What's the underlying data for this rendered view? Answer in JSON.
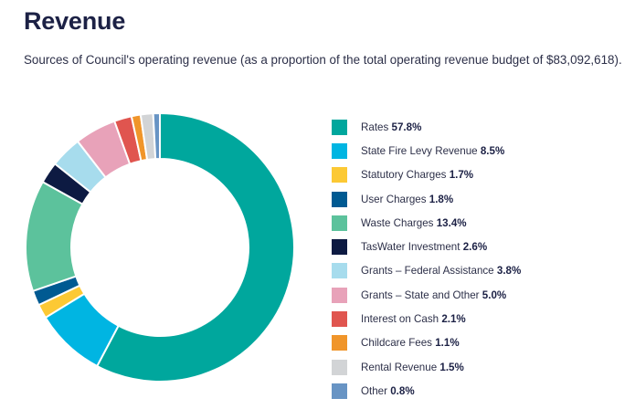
{
  "title": "Revenue",
  "subtitle": "Sources of Council's operating revenue (as a proportion of the total operating revenue budget of $83,092,618).",
  "chart_data": {
    "type": "pie",
    "style": "donut",
    "unit": "%",
    "legend_position": "right",
    "series": [
      {
        "name": "Rates",
        "value": 57.8,
        "label": "57.8%",
        "color": "#00a79d"
      },
      {
        "name": "State Fire Levy Revenue",
        "value": 8.5,
        "label": "8.5%",
        "color": "#00b5e2"
      },
      {
        "name": "Statutory Charges",
        "value": 1.7,
        "label": "1.7%",
        "color": "#fcc934"
      },
      {
        "name": "User Charges",
        "value": 1.8,
        "label": "1.8%",
        "color": "#005a92"
      },
      {
        "name": "Waste Charges",
        "value": 13.4,
        "label": "13.4%",
        "color": "#5cc29c"
      },
      {
        "name": "TasWater Investment",
        "value": 2.6,
        "label": "2.6%",
        "color": "#0d1a42"
      },
      {
        "name": "Grants – Federal Assistance",
        "value": 3.8,
        "label": "3.8%",
        "color": "#a7dced"
      },
      {
        "name": "Grants – State and Other",
        "value": 5.0,
        "label": "5.0%",
        "color": "#e8a2b9"
      },
      {
        "name": "Interest on Cash",
        "value": 2.1,
        "label": "2.1%",
        "color": "#e0554f"
      },
      {
        "name": "Childcare Fees",
        "value": 1.1,
        "label": "1.1%",
        "color": "#f0952a"
      },
      {
        "name": "Rental Revenue",
        "value": 1.5,
        "label": "1.5%",
        "color": "#d2d4d6"
      },
      {
        "name": "Other",
        "value": 0.8,
        "label": "0.8%",
        "color": "#6894c4"
      }
    ]
  }
}
